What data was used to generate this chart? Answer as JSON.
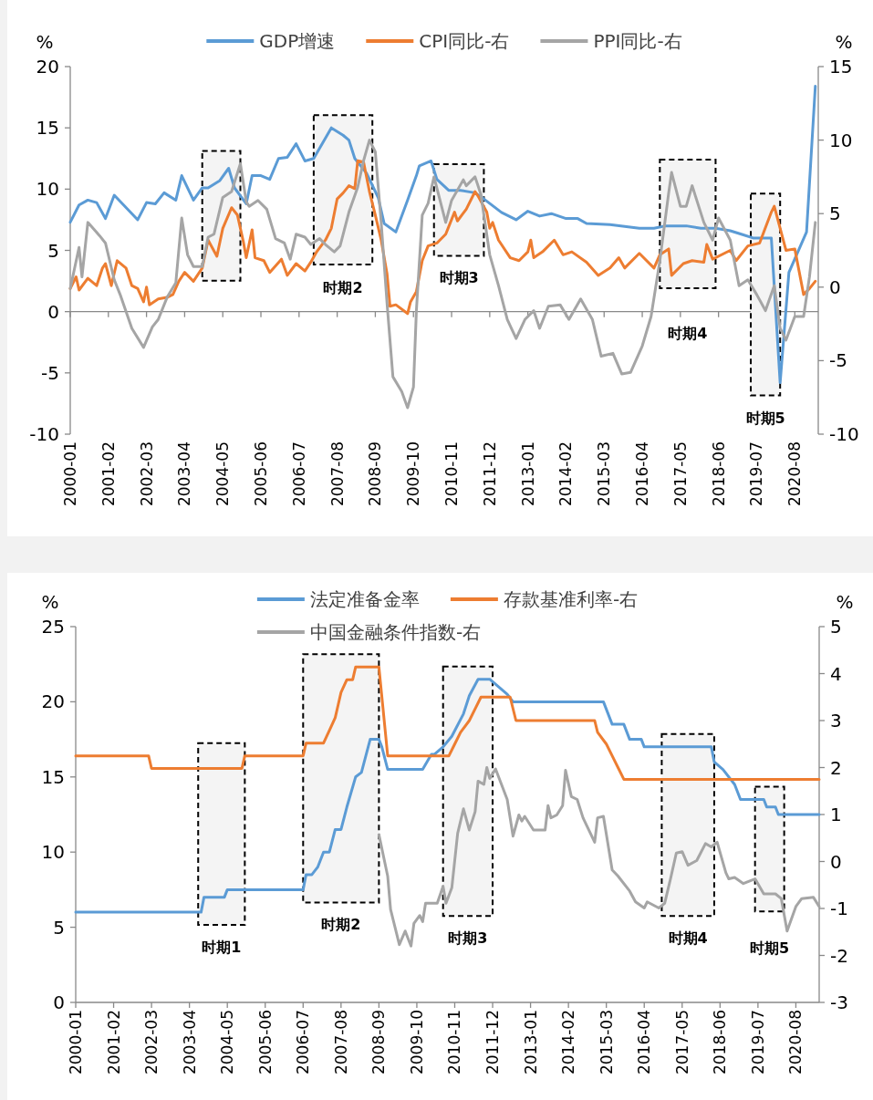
{
  "chart_data": [
    {
      "type": "line",
      "ylabel": "%",
      "y2label": "%",
      "legend": "top",
      "xlim": [
        "2000-01",
        "2021-04"
      ],
      "xticks": [
        "2000-01",
        "2001-02",
        "2002-03",
        "2003-04",
        "2004-05",
        "2005-06",
        "2006-07",
        "2007-08",
        "2008-09",
        "2009-10",
        "2010-11",
        "2011-12",
        "2013-01",
        "2014-02",
        "2015-03",
        "2016-04",
        "2017-05",
        "2018-06",
        "2019-07",
        "2020-08"
      ],
      "ylim": [
        -10,
        20
      ],
      "yticks": [
        -10,
        -5,
        0,
        5,
        10,
        15,
        20
      ],
      "y2lim": [
        -10,
        15
      ],
      "y2ticks": [
        -10,
        -5,
        0,
        5,
        10,
        15
      ],
      "series": [
        {
          "name": "GDP增速",
          "color": "#5b9bd5",
          "x": [
            "2000-01",
            "2000-04",
            "2000-07",
            "2000-10",
            "2001-01",
            "2001-04",
            "2001-08",
            "2001-12",
            "2002-03",
            "2002-06",
            "2002-09",
            "2003-01",
            "2003-03",
            "2003-07",
            "2003-10",
            "2003-12",
            "2004-04",
            "2004-07",
            "2004-09",
            "2005-01",
            "2005-03",
            "2005-06",
            "2005-09",
            "2005-12",
            "2006-03",
            "2006-06",
            "2006-09",
            "2006-12",
            "2007-06",
            "2007-10",
            "2007-12",
            "2008-02",
            "2008-06",
            "2008-10",
            "2008-12",
            "2009-04",
            "2009-08",
            "2009-11",
            "2009-12",
            "2010-04",
            "2010-06",
            "2010-10",
            "2011-02",
            "2011-07",
            "2011-10",
            "2012-04",
            "2012-09",
            "2013-01",
            "2013-05",
            "2013-09",
            "2014-02",
            "2014-06",
            "2014-09",
            "2015-05",
            "2016-03",
            "2016-08",
            "2016-12",
            "2017-07",
            "2017-12",
            "2018-05",
            "2018-10",
            "2019-02",
            "2019-06",
            "2019-12",
            "2020-03",
            "2020-06",
            "2020-12",
            "2021-03"
          ],
          "values": [
            7.3,
            8.7,
            9.1,
            8.9,
            7.6,
            9.5,
            8.5,
            7.5,
            8.9,
            8.8,
            9.7,
            9.1,
            11.1,
            9.1,
            10.1,
            10.1,
            10.7,
            11.7,
            10.1,
            8.8,
            11.1,
            11.1,
            10.8,
            12.5,
            12.6,
            13.7,
            12.3,
            12.5,
            15.0,
            14.4,
            14.0,
            12.5,
            11.3,
            9.3,
            7.2,
            6.5,
            9.1,
            11.1,
            11.9,
            12.3,
            10.8,
            9.9,
            9.9,
            9.7,
            9.2,
            8.1,
            7.5,
            8.2,
            7.8,
            8.0,
            7.6,
            7.6,
            7.2,
            7.1,
            6.8,
            6.8,
            7.0,
            7.0,
            6.8,
            6.8,
            6.6,
            6.3,
            6.0,
            6.0,
            -5.8,
            3.2,
            6.5,
            18.4
          ]
        },
        {
          "name": "CPI同比-右",
          "color": "#ed7d31",
          "axis": "y2",
          "x": [
            "2000-01",
            "2000-03",
            "2000-04",
            "2000-07",
            "2000-10",
            "2000-12",
            "2001-01",
            "2001-03",
            "2001-05",
            "2001-08",
            "2001-10",
            "2001-12",
            "2002-02",
            "2002-03",
            "2002-04",
            "2002-07",
            "2002-10",
            "2002-12",
            "2003-02",
            "2003-04",
            "2003-07",
            "2003-10",
            "2003-12",
            "2004-03",
            "2004-05",
            "2004-08",
            "2004-10",
            "2004-12",
            "2005-01",
            "2005-03",
            "2005-04",
            "2005-07",
            "2005-09",
            "2006-01",
            "2006-03",
            "2006-06",
            "2006-09",
            "2006-11",
            "2007-01",
            "2007-04",
            "2007-06",
            "2007-08",
            "2007-10",
            "2007-12",
            "2008-02",
            "2008-03",
            "2008-05",
            "2008-07",
            "2008-09",
            "2008-11",
            "2009-01",
            "2009-02",
            "2009-04",
            "2009-08",
            "2009-09",
            "2009-11",
            "2010-01",
            "2010-03",
            "2010-06",
            "2010-09",
            "2010-12",
            "2011-01",
            "2011-04",
            "2011-07",
            "2011-08",
            "2011-11",
            "2011-12",
            "2012-01",
            "2012-03",
            "2012-07",
            "2012-10",
            "2013-01",
            "2013-02",
            "2013-03",
            "2013-06",
            "2013-10",
            "2014-01",
            "2014-04",
            "2014-09",
            "2015-01",
            "2015-05",
            "2015-08",
            "2015-10",
            "2016-03",
            "2016-08",
            "2016-10",
            "2017-01",
            "2017-02",
            "2017-06",
            "2017-09",
            "2018-01",
            "2018-02",
            "2018-04",
            "2018-10",
            "2018-12",
            "2019-04",
            "2019-08",
            "2019-12",
            "2020-01",
            "2020-05",
            "2020-08",
            "2020-11",
            "2021-01",
            "2021-03"
          ],
          "values": [
            -0.1,
            0.7,
            -0.2,
            0.6,
            0.1,
            1.3,
            1.6,
            0.1,
            1.8,
            1.3,
            0.1,
            -0.1,
            -1.0,
            0,
            -1.2,
            -0.8,
            -0.7,
            -0.5,
            0.4,
            1.0,
            0.4,
            1.3,
            3.2,
            2.1,
            4.0,
            5.4,
            4.9,
            3.1,
            2.0,
            3.9,
            2.0,
            1.8,
            1.0,
            1.9,
            0.8,
            1.6,
            1.1,
            1.7,
            2.4,
            3.2,
            4.0,
            6.0,
            6.4,
            6.9,
            6.7,
            8.6,
            8.5,
            6.5,
            4.9,
            3.2,
            0.9,
            -1.3,
            -1.2,
            -1.8,
            -1.0,
            -0.3,
            1.8,
            2.8,
            3.0,
            3.6,
            5.1,
            4.5,
            5.3,
            6.5,
            6.2,
            5.1,
            4.0,
            4.4,
            3.2,
            2.0,
            1.8,
            2.4,
            3.2,
            2.0,
            2.4,
            3.2,
            2.2,
            2.4,
            1.7,
            0.8,
            1.3,
            2.0,
            1.3,
            2.3,
            1.3,
            2.2,
            2.6,
            0.8,
            1.6,
            1.8,
            1.7,
            2.9,
            1.9,
            2.5,
            1.8,
            2.8,
            3.0,
            5.1,
            5.5,
            2.5,
            2.6,
            -0.5,
            -0.1,
            0.4
          ]
        },
        {
          "name": "PPI同比-右",
          "color": "#a5a5a5",
          "axis": "y2",
          "x": [
            "2000-01",
            "2000-04",
            "2000-05",
            "2000-07",
            "2000-11",
            "2001-01",
            "2001-04",
            "2001-06",
            "2001-10",
            "2002-02",
            "2002-05",
            "2002-07",
            "2002-10",
            "2003-01",
            "2003-03",
            "2003-05",
            "2003-07",
            "2003-10",
            "2003-12",
            "2004-02",
            "2004-05",
            "2004-08",
            "2004-11",
            "2005-01",
            "2005-02",
            "2005-05",
            "2005-08",
            "2005-11",
            "2006-02",
            "2006-04",
            "2006-06",
            "2006-09",
            "2006-11",
            "2007-02",
            "2007-04",
            "2007-07",
            "2007-09",
            "2007-12",
            "2008-03",
            "2008-05",
            "2008-07",
            "2008-09",
            "2008-11",
            "2009-01",
            "2009-03",
            "2009-06",
            "2009-08",
            "2009-10",
            "2009-11",
            "2010-01",
            "2010-03",
            "2010-05",
            "2010-09",
            "2010-11",
            "2011-03",
            "2011-04",
            "2011-07",
            "2011-09",
            "2011-12",
            "2012-03",
            "2012-06",
            "2012-09",
            "2012-12",
            "2013-03",
            "2013-05",
            "2013-08",
            "2013-12",
            "2014-03",
            "2014-07",
            "2014-11",
            "2015-02",
            "2015-06",
            "2015-09",
            "2015-12",
            "2016-04",
            "2016-07",
            "2016-10",
            "2017-01",
            "2017-02",
            "2017-05",
            "2017-07",
            "2017-09",
            "2018-01",
            "2018-04",
            "2018-06",
            "2018-10",
            "2019-01",
            "2019-04",
            "2019-07",
            "2019-10",
            "2020-01",
            "2020-03",
            "2020-05",
            "2020-08",
            "2020-11",
            "2021-01",
            "2021-03"
          ],
          "values": [
            -0.1,
            2.7,
            0.7,
            4.4,
            3.5,
            3.0,
            0.5,
            -0.5,
            -2.8,
            -4.1,
            -2.7,
            -2.2,
            -0.7,
            0.3,
            4.7,
            2.2,
            1.4,
            1.4,
            3.4,
            3.6,
            6.1,
            6.5,
            8.4,
            5.8,
            5.5,
            5.9,
            5.3,
            3.3,
            3.0,
            1.9,
            3.6,
            3.4,
            2.9,
            3.3,
            2.9,
            2.4,
            2.8,
            5.1,
            6.8,
            8.6,
            10.0,
            9.2,
            4.4,
            -1.1,
            -6.1,
            -7.1,
            -8.2,
            -6.8,
            -1.6,
            4.9,
            5.7,
            7.5,
            4.4,
            5.9,
            7.3,
            6.9,
            7.5,
            6.3,
            2.2,
            0.1,
            -2.2,
            -3.5,
            -2.2,
            -1.6,
            -2.8,
            -1.3,
            -1.2,
            -2.2,
            -0.8,
            -2.2,
            -4.7,
            -4.5,
            -5.9,
            -5.8,
            -4.0,
            -2.0,
            1.8,
            6.4,
            7.8,
            5.5,
            5.5,
            6.9,
            4.4,
            3.2,
            4.7,
            3.2,
            0.1,
            0.5,
            -0.5,
            -1.6,
            0.1,
            -2.8,
            -3.6,
            -2.0,
            -2.0,
            0.7,
            4.4
          ]
        }
      ],
      "bands": [
        {
          "axis": "x",
          "from": "2003-10",
          "to": "2004-11"
        },
        {
          "axis": "x",
          "from": "2006-12",
          "to": "2008-08",
          "label": "时期2"
        },
        {
          "axis": "x",
          "from": "2010-05",
          "to": "2011-10",
          "label": "时期3"
        },
        {
          "axis": "x",
          "from": "2016-10",
          "to": "2018-05",
          "label": "时期4"
        },
        {
          "axis": "x",
          "from": "2019-05",
          "to": "2020-03",
          "label": "时期5"
        }
      ]
    },
    {
      "type": "line",
      "ylabel": "%",
      "y2label": "%",
      "legend": "top",
      "xlim": [
        "2000-01",
        "2021-04"
      ],
      "xticks": [
        "2000-01",
        "2001-02",
        "2002-03",
        "2003-04",
        "2004-05",
        "2005-06",
        "2006-07",
        "2007-08",
        "2008-09",
        "2009-10",
        "2010-11",
        "2011-12",
        "2013-01",
        "2014-02",
        "2015-03",
        "2016-04",
        "2017-05",
        "2018-06",
        "2019-07",
        "2020-08"
      ],
      "ylim": [
        0,
        25
      ],
      "yticks": [
        0,
        5,
        10,
        15,
        20,
        25
      ],
      "y2lim": [
        -3,
        5
      ],
      "y2ticks": [
        -3,
        -2,
        -1,
        0,
        1,
        2,
        3,
        4,
        5
      ],
      "series": [
        {
          "name": "法定准备金率",
          "color": "#5b9bd5",
          "x": [
            "2000-01",
            "2003-08",
            "2003-09",
            "2004-04",
            "2004-05",
            "2006-07",
            "2006-08",
            "2006-10",
            "2006-12",
            "2007-02",
            "2007-04",
            "2007-06",
            "2007-08",
            "2007-10",
            "2008-01",
            "2008-03",
            "2008-06",
            "2008-09",
            "2008-10",
            "2008-12",
            "2009-12",
            "2010-03",
            "2010-04",
            "2010-07",
            "2010-10",
            "2011-02",
            "2011-04",
            "2011-07",
            "2011-11",
            "2012-02",
            "2012-05",
            "2012-07",
            "2015-02",
            "2015-05",
            "2015-09",
            "2015-11",
            "2016-03",
            "2016-04",
            "2018-03",
            "2018-04",
            "2018-07",
            "2018-11",
            "2019-01",
            "2019-09",
            "2019-10",
            "2020-01",
            "2020-02",
            "2021-04"
          ],
          "values": [
            6.0,
            6.0,
            7.0,
            7.0,
            7.5,
            7.5,
            8.5,
            8.5,
            9.0,
            10.0,
            10.0,
            11.5,
            11.5,
            13.0,
            15.0,
            15.3,
            17.5,
            17.5,
            17.0,
            15.5,
            15.5,
            16.5,
            16.5,
            17.0,
            17.7,
            19.2,
            20.4,
            21.5,
            21.5,
            21.0,
            20.5,
            20.0,
            20.0,
            18.5,
            18.5,
            17.5,
            17.5,
            17.0,
            17.0,
            16.0,
            15.5,
            14.5,
            13.5,
            13.5,
            13.0,
            13.0,
            12.5,
            12.5
          ]
        },
        {
          "name": "存款基准利率-右",
          "color": "#ed7d31",
          "axis": "y2",
          "x": [
            "2000-01",
            "2002-02",
            "2002-03",
            "2004-10",
            "2004-11",
            "2006-07",
            "2006-08",
            "2007-02",
            "2007-04",
            "2007-06",
            "2007-07",
            "2007-08",
            "2007-10",
            "2007-12",
            "2008-01",
            "2008-09",
            "2008-12",
            "2010-09",
            "2010-11",
            "2011-01",
            "2011-04",
            "2011-06",
            "2011-08",
            "2012-06",
            "2012-08",
            "2014-11",
            "2014-12",
            "2015-03",
            "2015-05",
            "2015-07",
            "2015-09",
            "2021-04"
          ],
          "values": [
            2.25,
            2.25,
            1.98,
            1.98,
            2.25,
            2.25,
            2.52,
            2.52,
            2.79,
            3.06,
            3.33,
            3.6,
            3.87,
            3.87,
            4.14,
            4.14,
            2.25,
            2.25,
            2.5,
            2.75,
            3.0,
            3.25,
            3.5,
            3.5,
            3.0,
            3.0,
            2.75,
            2.5,
            2.25,
            2.0,
            1.75,
            1.75
          ]
        },
        {
          "name": "中国金融条件指数-右",
          "color": "#a5a5a5",
          "axis": "y2",
          "x": [
            "2008-09",
            "2008-12",
            "2009-01",
            "2009-04",
            "2009-06",
            "2009-08",
            "2009-09",
            "2009-11",
            "2009-12",
            "2010-01",
            "2010-05",
            "2010-07",
            "2010-08",
            "2010-10",
            "2010-12",
            "2011-02",
            "2011-04",
            "2011-06",
            "2011-07",
            "2011-09",
            "2011-10",
            "2011-11",
            "2012-01",
            "2012-05",
            "2012-07",
            "2012-09",
            "2012-10",
            "2012-11",
            "2013-02",
            "2013-06",
            "2013-07",
            "2013-08",
            "2013-10",
            "2013-12",
            "2014-01",
            "2014-03",
            "2014-05",
            "2014-07",
            "2014-11",
            "2014-12",
            "2015-02",
            "2015-05",
            "2015-07",
            "2015-11",
            "2016-01",
            "2016-04",
            "2016-05",
            "2016-09",
            "2016-11",
            "2017-01",
            "2017-03",
            "2017-05",
            "2017-07",
            "2017-10",
            "2018-01",
            "2018-03",
            "2018-05",
            "2018-08",
            "2018-09",
            "2018-11",
            "2019-02",
            "2019-06",
            "2019-09",
            "2020-01",
            "2020-03",
            "2020-05",
            "2020-08",
            "2020-10",
            "2021-02",
            "2021-04"
          ],
          "values": [
            0.57,
            -0.31,
            -1.02,
            -1.77,
            -1.48,
            -1.8,
            -1.32,
            -1.15,
            -1.28,
            -0.89,
            -0.89,
            -0.53,
            -0.89,
            -0.56,
            0.6,
            1.12,
            0.67,
            1.06,
            1.71,
            1.64,
            2.0,
            1.77,
            1.97,
            1.32,
            0.54,
            0.99,
            0.86,
            0.96,
            0.67,
            0.67,
            1.19,
            0.93,
            0.99,
            1.19,
            1.94,
            1.38,
            1.32,
            0.93,
            0.41,
            0.93,
            0.96,
            -0.18,
            -0.31,
            -0.63,
            -0.86,
            -0.99,
            -0.86,
            -0.99,
            -0.89,
            -0.37,
            0.18,
            0.21,
            -0.08,
            0.02,
            0.38,
            0.31,
            0.41,
            -0.24,
            -0.37,
            -0.34,
            -0.47,
            -0.37,
            -0.69,
            -0.69,
            -0.79,
            -1.48,
            -0.96,
            -0.79,
            -0.76,
            -0.96
          ]
        }
      ],
      "bands": [
        {
          "axis": "x",
          "from": "2003-07",
          "to": "2004-11",
          "label": "时期1"
        },
        {
          "axis": "x",
          "from": "2006-07",
          "to": "2008-09",
          "label": "时期2"
        },
        {
          "axis": "x",
          "from": "2010-07",
          "to": "2011-12",
          "label": "时期3"
        },
        {
          "axis": "x",
          "from": "2016-10",
          "to": "2018-04",
          "label": "时期4"
        },
        {
          "axis": "x",
          "from": "2019-06",
          "to": "2020-04",
          "label": "时期5"
        }
      ]
    }
  ]
}
